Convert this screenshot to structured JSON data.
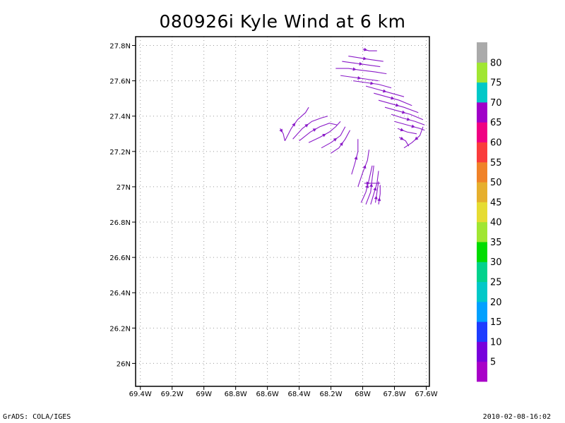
{
  "title": "080926i Kyle Wind at 6 km",
  "footer": {
    "left": "GrADS: COLA/IGES",
    "right": "2010-02-08-16:02"
  },
  "chart_data": {
    "type": "streamline",
    "title": "080926i Kyle Wind at 6 km",
    "xlim": [
      -69.43,
      -67.58
    ],
    "ylim": [
      25.87,
      27.85
    ],
    "x_ticks": [
      {
        "value": -69.4,
        "label": "69.4W"
      },
      {
        "value": -69.2,
        "label": "69.2W"
      },
      {
        "value": -69.0,
        "label": "69W"
      },
      {
        "value": -68.8,
        "label": "68.8W"
      },
      {
        "value": -68.6,
        "label": "68.6W"
      },
      {
        "value": -68.4,
        "label": "68.4W"
      },
      {
        "value": -68.2,
        "label": "68.2W"
      },
      {
        "value": -68.0,
        "label": "68W"
      },
      {
        "value": -67.8,
        "label": "67.8W"
      },
      {
        "value": -67.6,
        "label": "67.6W"
      }
    ],
    "y_ticks": [
      {
        "value": 26.0,
        "label": "26N"
      },
      {
        "value": 26.2,
        "label": "26.2N"
      },
      {
        "value": 26.4,
        "label": "26.4N"
      },
      {
        "value": 26.6,
        "label": "26.6N"
      },
      {
        "value": 26.8,
        "label": "26.8N"
      },
      {
        "value": 27.0,
        "label": "27N"
      },
      {
        "value": 27.2,
        "label": "27.2N"
      },
      {
        "value": 27.4,
        "label": "27.4N"
      },
      {
        "value": 27.6,
        "label": "27.6N"
      },
      {
        "value": 27.8,
        "label": "27.8N"
      }
    ],
    "grid": true,
    "stream_color": "#8a1ac8",
    "streamlines": [
      {
        "points": [
          [
            -68.0,
            27.78
          ],
          [
            -67.96,
            27.77
          ],
          [
            -67.91,
            27.77
          ]
        ]
      },
      {
        "points": [
          [
            -68.09,
            27.74
          ],
          [
            -68.02,
            27.73
          ],
          [
            -67.95,
            27.72
          ],
          [
            -67.87,
            27.71
          ]
        ]
      },
      {
        "points": [
          [
            -68.13,
            27.71
          ],
          [
            -68.05,
            27.7
          ],
          [
            -67.97,
            27.69
          ],
          [
            -67.89,
            27.68
          ]
        ]
      },
      {
        "points": [
          [
            -68.17,
            27.67
          ],
          [
            -68.09,
            27.67
          ],
          [
            -68.01,
            27.66
          ],
          [
            -67.92,
            27.65
          ],
          [
            -67.85,
            27.64
          ]
        ]
      },
      {
        "points": [
          [
            -68.14,
            27.63
          ],
          [
            -68.06,
            27.62
          ],
          [
            -67.98,
            27.61
          ],
          [
            -67.9,
            27.6
          ]
        ]
      },
      {
        "points": [
          [
            -68.06,
            27.6
          ],
          [
            -67.98,
            27.59
          ],
          [
            -67.9,
            27.58
          ],
          [
            -67.82,
            27.56
          ]
        ]
      },
      {
        "points": [
          [
            -67.98,
            27.57
          ],
          [
            -67.9,
            27.55
          ],
          [
            -67.82,
            27.53
          ],
          [
            -67.74,
            27.51
          ]
        ]
      },
      {
        "points": [
          [
            -67.93,
            27.53
          ],
          [
            -67.85,
            27.51
          ],
          [
            -67.77,
            27.49
          ],
          [
            -67.69,
            27.46
          ]
        ]
      },
      {
        "points": [
          [
            -67.9,
            27.49
          ],
          [
            -67.82,
            27.47
          ],
          [
            -67.74,
            27.45
          ],
          [
            -67.65,
            27.42
          ]
        ]
      },
      {
        "points": [
          [
            -67.86,
            27.45
          ],
          [
            -67.78,
            27.43
          ],
          [
            -67.7,
            27.41
          ],
          [
            -67.62,
            27.38
          ]
        ]
      },
      {
        "points": [
          [
            -67.82,
            27.41
          ],
          [
            -67.75,
            27.39
          ],
          [
            -67.67,
            27.37
          ],
          [
            -67.61,
            27.35
          ]
        ]
      },
      {
        "points": [
          [
            -67.8,
            27.37
          ],
          [
            -67.72,
            27.35
          ],
          [
            -67.64,
            27.33
          ],
          [
            -67.61,
            27.32
          ]
        ]
      },
      {
        "points": [
          [
            -67.78,
            27.33
          ],
          [
            -67.72,
            27.31
          ],
          [
            -67.66,
            27.3
          ]
        ]
      },
      {
        "points": [
          [
            -67.77,
            27.28
          ],
          [
            -67.73,
            27.26
          ],
          [
            -67.71,
            27.23
          ]
        ]
      },
      {
        "points": [
          [
            -67.62,
            27.34
          ],
          [
            -67.64,
            27.29
          ],
          [
            -67.69,
            27.25
          ],
          [
            -67.74,
            27.22
          ]
        ]
      },
      {
        "points": [
          [
            -68.49,
            27.26
          ],
          [
            -68.45,
            27.33
          ],
          [
            -68.41,
            27.38
          ],
          [
            -68.36,
            27.42
          ],
          [
            -68.34,
            27.45
          ]
        ]
      },
      {
        "points": [
          [
            -68.44,
            27.27
          ],
          [
            -68.38,
            27.33
          ],
          [
            -68.32,
            27.37
          ],
          [
            -68.26,
            27.39
          ],
          [
            -68.22,
            27.4
          ]
        ]
      },
      {
        "points": [
          [
            -68.4,
            27.26
          ],
          [
            -68.33,
            27.31
          ],
          [
            -68.27,
            27.34
          ],
          [
            -68.21,
            27.36
          ],
          [
            -68.16,
            27.35
          ]
        ]
      },
      {
        "points": [
          [
            -68.34,
            27.25
          ],
          [
            -68.27,
            27.28
          ],
          [
            -68.21,
            27.31
          ],
          [
            -68.17,
            27.34
          ],
          [
            -68.14,
            27.37
          ]
        ]
      },
      {
        "points": [
          [
            -68.26,
            27.22
          ],
          [
            -68.2,
            27.25
          ],
          [
            -68.14,
            27.29
          ],
          [
            -68.11,
            27.34
          ]
        ]
      },
      {
        "points": [
          [
            -68.2,
            27.19
          ],
          [
            -68.15,
            27.22
          ],
          [
            -68.11,
            27.27
          ],
          [
            -68.08,
            27.32
          ]
        ]
      },
      {
        "points": [
          [
            -68.52,
            27.33
          ],
          [
            -68.5,
            27.3
          ],
          [
            -68.49,
            27.26
          ]
        ]
      },
      {
        "points": [
          [
            -68.07,
            27.07
          ],
          [
            -68.05,
            27.13
          ],
          [
            -68.03,
            27.2
          ],
          [
            -68.03,
            27.27
          ]
        ]
      },
      {
        "points": [
          [
            -68.03,
            27.0
          ],
          [
            -68.0,
            27.08
          ],
          [
            -67.97,
            27.15
          ],
          [
            -67.96,
            27.21
          ]
        ]
      },
      {
        "points": [
          [
            -68.01,
            26.91
          ],
          [
            -67.98,
            26.97
          ],
          [
            -67.96,
            27.04
          ],
          [
            -67.94,
            27.12
          ]
        ]
      },
      {
        "points": [
          [
            -67.98,
            26.9
          ],
          [
            -67.95,
            26.97
          ],
          [
            -67.94,
            27.05
          ],
          [
            -67.93,
            27.12
          ]
        ]
      },
      {
        "points": [
          [
            -67.95,
            26.9
          ],
          [
            -67.93,
            26.96
          ],
          [
            -67.91,
            27.02
          ],
          [
            -67.9,
            27.09
          ]
        ]
      },
      {
        "points": [
          [
            -67.92,
            26.91
          ],
          [
            -67.91,
            26.97
          ],
          [
            -67.9,
            27.03
          ]
        ]
      },
      {
        "points": [
          [
            -67.9,
            26.9
          ],
          [
            -67.89,
            26.96
          ],
          [
            -67.89,
            27.01
          ]
        ]
      },
      {
        "points": [
          [
            -67.99,
            27.02
          ],
          [
            -67.94,
            27.02
          ],
          [
            -67.89,
            27.02
          ]
        ]
      }
    ],
    "colorbar": {
      "levels": [
        {
          "color": "#a800c8",
          "label": ""
        },
        {
          "color": "#7800dc",
          "label": "5"
        },
        {
          "color": "#1e3cff",
          "label": "10"
        },
        {
          "color": "#00a0ff",
          "label": "15"
        },
        {
          "color": "#00c8c8",
          "label": "20"
        },
        {
          "color": "#00d28c",
          "label": "25"
        },
        {
          "color": "#00dc00",
          "label": "30"
        },
        {
          "color": "#a0e632",
          "label": "35"
        },
        {
          "color": "#e6dc32",
          "label": "40"
        },
        {
          "color": "#e6af2d",
          "label": "45"
        },
        {
          "color": "#f08228",
          "label": "50"
        },
        {
          "color": "#fa3c3c",
          "label": "55"
        },
        {
          "color": "#f00082",
          "label": "60"
        },
        {
          "color": "#a000c8",
          "label": "65"
        },
        {
          "color": "#00c8c8",
          "label": "70"
        },
        {
          "color": "#a0e632",
          "label": "75"
        },
        {
          "color": "#aaaaaa",
          "label": "80"
        }
      ]
    }
  }
}
